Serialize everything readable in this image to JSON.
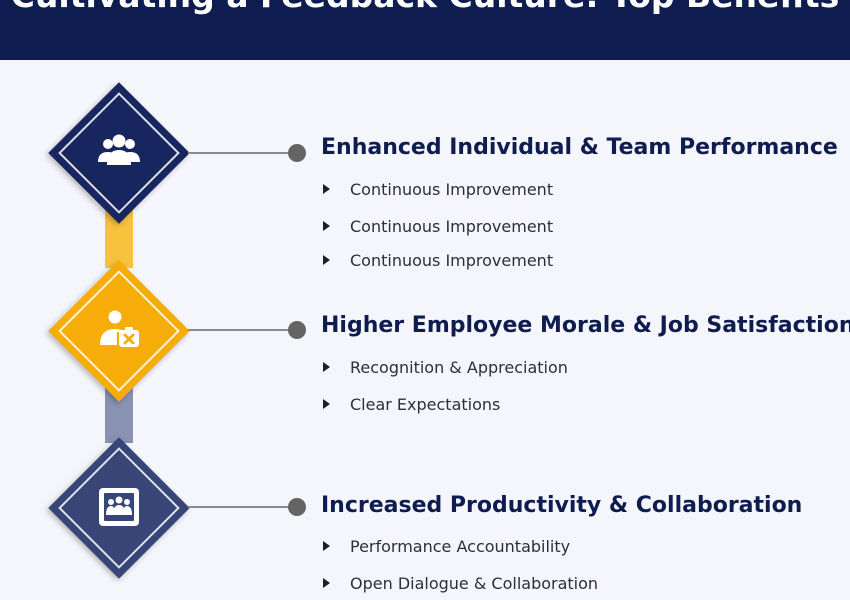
{
  "header": {
    "title": "Cultivating a Feedback Culture: Top Benefits"
  },
  "milestones": [
    {
      "icon": "team-group-icon",
      "color": "#182660",
      "title": "Enhanced Individual & Team Performance",
      "bullets": [
        "Continuous Improvement",
        "Continuous Improvement",
        "Continuous Improvement"
      ]
    },
    {
      "icon": "employee-badge-icon",
      "color": "#f7ad09",
      "title": "Higher Employee Morale & Job Satisfaction",
      "bullets": [
        "Recognition & Appreciation",
        "Clear Expectations"
      ]
    },
    {
      "icon": "team-board-icon",
      "color": "#384577",
      "title": "Increased Productivity & Collaboration",
      "bullets": [
        "Performance Accountability",
        "Open Dialogue & Collaboration"
      ]
    }
  ],
  "connector_colors": [
    "#f7c33c",
    "#8a92b3"
  ]
}
